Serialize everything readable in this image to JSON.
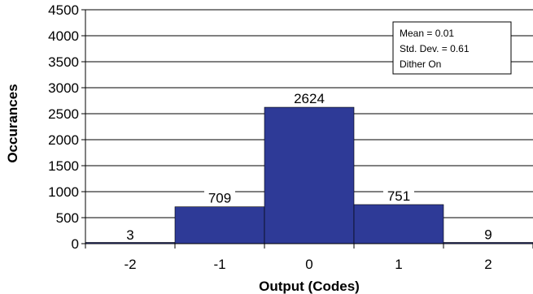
{
  "chart_data": {
    "type": "bar",
    "categories": [
      "-2",
      "-1",
      "0",
      "1",
      "2"
    ],
    "values": [
      3,
      709,
      2624,
      751,
      9
    ],
    "data_labels": [
      "3",
      "709",
      "2624",
      "751",
      "9"
    ],
    "xlabel": "Output (Codes)",
    "ylabel": "Occurances",
    "ylim": [
      0,
      4500
    ],
    "yticks": [
      0,
      500,
      1000,
      1500,
      2000,
      2500,
      3000,
      3500,
      4000,
      4500
    ],
    "ytick_labels": [
      "0",
      "500",
      "1000",
      "1500",
      "2000",
      "2500",
      "3000",
      "3500",
      "4000",
      "4500"
    ],
    "grid": "horizontal",
    "bar_color": "#2E3A97",
    "annotation": {
      "lines": [
        "Mean = 0.01",
        "Std. Dev. = 0.61",
        "Dither On"
      ],
      "position": "top-right"
    }
  }
}
